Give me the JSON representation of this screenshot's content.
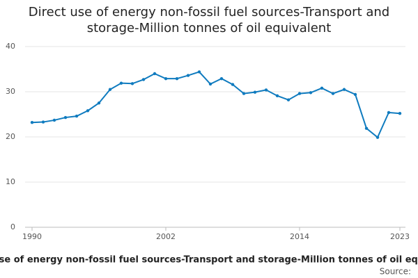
{
  "chart_data": {
    "type": "line",
    "title": "Direct use of energy non-fossil fuel sources-Transport and storage-Million tonnes of oil equivalent",
    "x_label": "Direct use of energy non-fossil fuel sources-Transport and storage-Million tonnes of oil equivalent",
    "source": "Source:",
    "x": [
      1990,
      1991,
      1992,
      1993,
      1994,
      1995,
      1996,
      1997,
      1998,
      1999,
      2000,
      2001,
      2002,
      2003,
      2004,
      2005,
      2006,
      2007,
      2008,
      2009,
      2010,
      2011,
      2012,
      2013,
      2014,
      2015,
      2016,
      2017,
      2018,
      2019,
      2020,
      2021,
      2022,
      2023
    ],
    "series": [
      {
        "name": "Direct use of energy non-fossil fuel sources-Transport and storage-Million tonnes of oil equivalent",
        "color": "#0f7bbf",
        "values": [
          23.2,
          23.3,
          23.7,
          24.3,
          24.6,
          25.8,
          27.5,
          30.5,
          31.9,
          31.8,
          32.7,
          34.0,
          32.9,
          32.9,
          33.6,
          34.4,
          31.7,
          32.9,
          31.6,
          29.6,
          29.9,
          30.4,
          29.1,
          28.2,
          29.6,
          29.8,
          30.8,
          29.6,
          30.5,
          29.4,
          21.9,
          19.9,
          25.4,
          25.2
        ]
      }
    ],
    "xlim": [
      1990,
      2023
    ],
    "xticks": [
      1990,
      2002,
      2014,
      2023
    ],
    "ylim": [
      0,
      40
    ],
    "yticks": [
      0,
      10,
      20,
      30,
      40
    ],
    "grid": true
  }
}
